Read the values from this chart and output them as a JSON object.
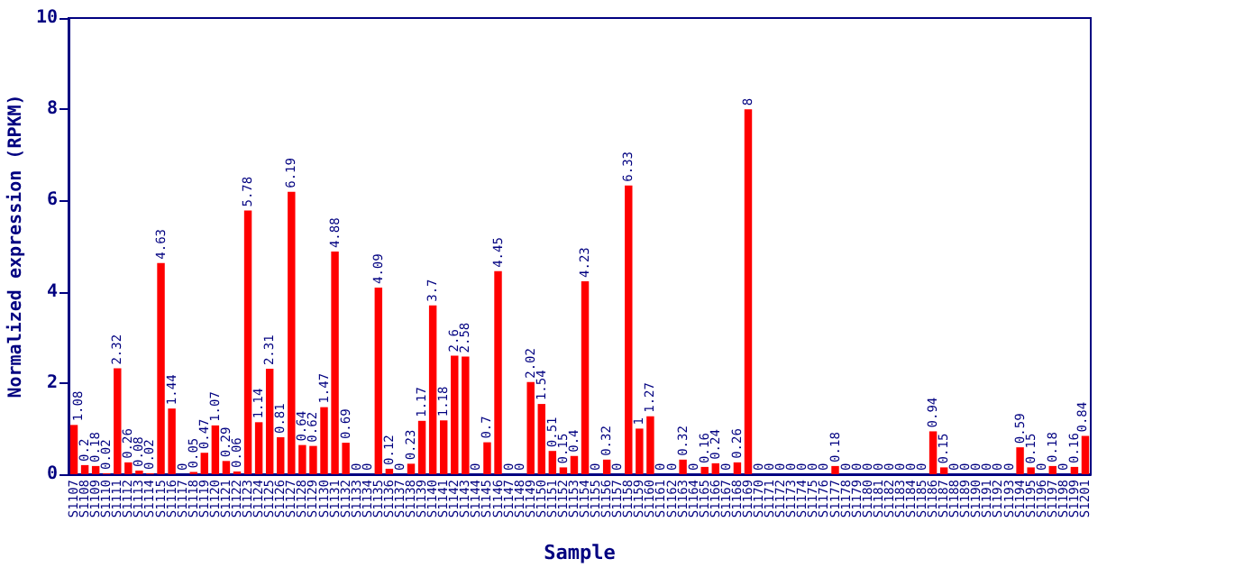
{
  "chart_data": {
    "type": "bar",
    "xlabel": "Sample",
    "ylabel": "Normalized expression (RPKM)",
    "categories": [
      "S1107",
      "S1108",
      "S1109",
      "S1110",
      "S1111",
      "S1112",
      "S1113",
      "S1114",
      "S1115",
      "S1116",
      "S1117",
      "S1118",
      "S1119",
      "S1120",
      "S1121",
      "S1122",
      "S1123",
      "S1124",
      "S1125",
      "S1126",
      "S1127",
      "S1128",
      "S1129",
      "S1130",
      "S1131",
      "S1132",
      "S1133",
      "S1134",
      "S1135",
      "S1136",
      "S1137",
      "S1138",
      "S1139",
      "S1140",
      "S1141",
      "S1142",
      "S1143",
      "S1144",
      "S1145",
      "S1146",
      "S1147",
      "S1148",
      "S1149",
      "S1150",
      "S1151",
      "S1152",
      "S1153",
      "S1154",
      "S1155",
      "S1156",
      "S1157",
      "S1158",
      "S1159",
      "S1160",
      "S1161",
      "S1162",
      "S1163",
      "S1164",
      "S1165",
      "S1166",
      "S1167",
      "S1168",
      "S1169",
      "S1170",
      "S1171",
      "S1172",
      "S1173",
      "S1174",
      "S1175",
      "S1176",
      "S1177",
      "S1178",
      "S1179",
      "S1180",
      "S1181",
      "S1182",
      "S1183",
      "S1184",
      "S1185",
      "S1186",
      "S1187",
      "S1188",
      "S1189",
      "S1190",
      "S1191",
      "S1192",
      "S1193",
      "S1194",
      "S1195",
      "S1196",
      "S1197",
      "S1198",
      "S1199",
      "S1201"
    ],
    "values": [
      1.08,
      0.2,
      0.18,
      0.02,
      2.32,
      0.26,
      0.08,
      0.02,
      4.63,
      1.44,
      0,
      0.05,
      0.47,
      1.07,
      0.29,
      0.06,
      5.78,
      1.14,
      2.31,
      0.81,
      6.19,
      0.64,
      0.62,
      1.47,
      4.88,
      0.69,
      0,
      0,
      4.09,
      0.12,
      0,
      0.23,
      1.17,
      3.7,
      1.18,
      2.6,
      2.58,
      0,
      0.7,
      4.45,
      0,
      0,
      2.02,
      1.54,
      0.51,
      0.15,
      0.4,
      4.23,
      0,
      0.32,
      0,
      6.33,
      1,
      1.27,
      0,
      0,
      0.32,
      0,
      0.16,
      0.24,
      0,
      0.26,
      8,
      0,
      0,
      0,
      0,
      0,
      0,
      0,
      0.18,
      0,
      0,
      0,
      0,
      0,
      0,
      0,
      0,
      0.94,
      0.15,
      0,
      0,
      0,
      0,
      0,
      0,
      0.59,
      0.15,
      0,
      0.18,
      0,
      0.16,
      0.84
    ],
    "color": "#ff0000",
    "data_labels": true,
    "ylim": [
      0,
      10
    ],
    "yticks": [
      0,
      2,
      4,
      6,
      8,
      10
    ],
    "grid": false
  }
}
